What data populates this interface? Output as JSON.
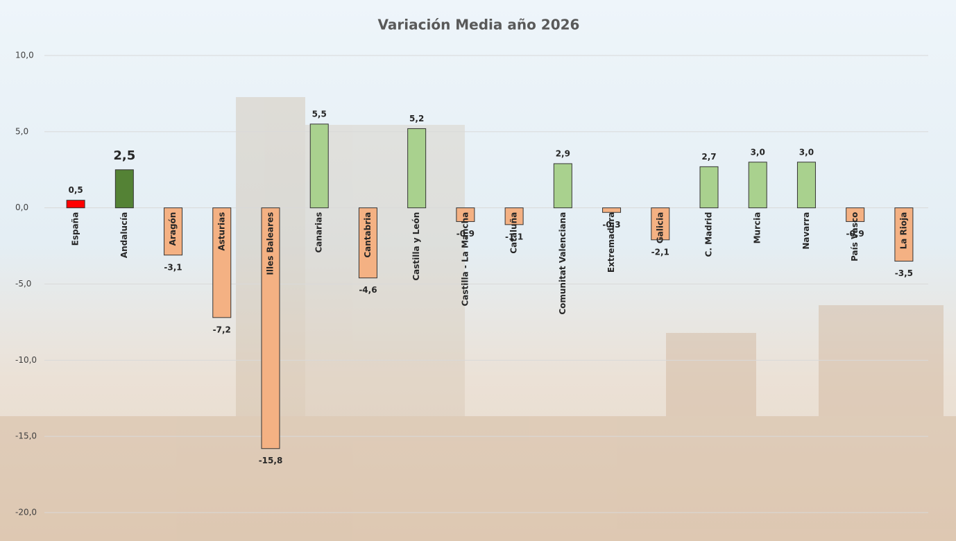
{
  "chart_data": {
    "type": "bar",
    "title": "Variación Media año 2026",
    "categories": [
      "España",
      "Andalucía",
      "Aragón",
      "Asturias",
      "Illes Baleares",
      "Canarias",
      "Cantabria",
      "Castilla y León",
      "Castilla - La Mancha",
      "Cataluña",
      "Comunitat Valenciana",
      "Extremadura",
      "Galicia",
      "C. Madrid",
      "Murcia",
      "Navarra",
      "País Vasco",
      "La Rioja"
    ],
    "values": [
      0.5,
      2.5,
      -3.1,
      -7.2,
      -15.8,
      5.5,
      -4.6,
      5.2,
      -0.9,
      -1.1,
      2.9,
      -0.3,
      -2.1,
      2.7,
      3.0,
      3.0,
      -0.9,
      -3.5
    ],
    "value_labels": [
      "0,5",
      "2,5",
      "-3,1",
      "-7,2",
      "-15,8",
      "5,5",
      "-4,6",
      "5,2",
      "-0,9",
      "-1,1",
      "2,9",
      "-0,3",
      "-2,1",
      "2,7",
      "3,0",
      "3,0",
      "-0,9",
      "-3,5"
    ],
    "colors": [
      "#ff0000",
      "#548235",
      "#f4b183",
      "#f4b183",
      "#f4b183",
      "#a9d18e",
      "#f4b183",
      "#a9d18e",
      "#f4b183",
      "#f4b183",
      "#a9d18e",
      "#f4b183",
      "#f4b183",
      "#a9d18e",
      "#a9d18e",
      "#a9d18e",
      "#f4b183",
      "#f4b183"
    ],
    "ylim": [
      -20,
      10
    ],
    "yticks": [
      {
        "value": -20,
        "label": "-20,0"
      },
      {
        "value": -15,
        "label": "-15,0"
      },
      {
        "value": -10,
        "label": "-10,0"
      },
      {
        "value": -5,
        "label": "-5,0"
      },
      {
        "value": 0,
        "label": "0,0"
      },
      {
        "value": 5,
        "label": "5,0"
      },
      {
        "value": 10,
        "label": "10,0"
      }
    ],
    "grid": true
  }
}
